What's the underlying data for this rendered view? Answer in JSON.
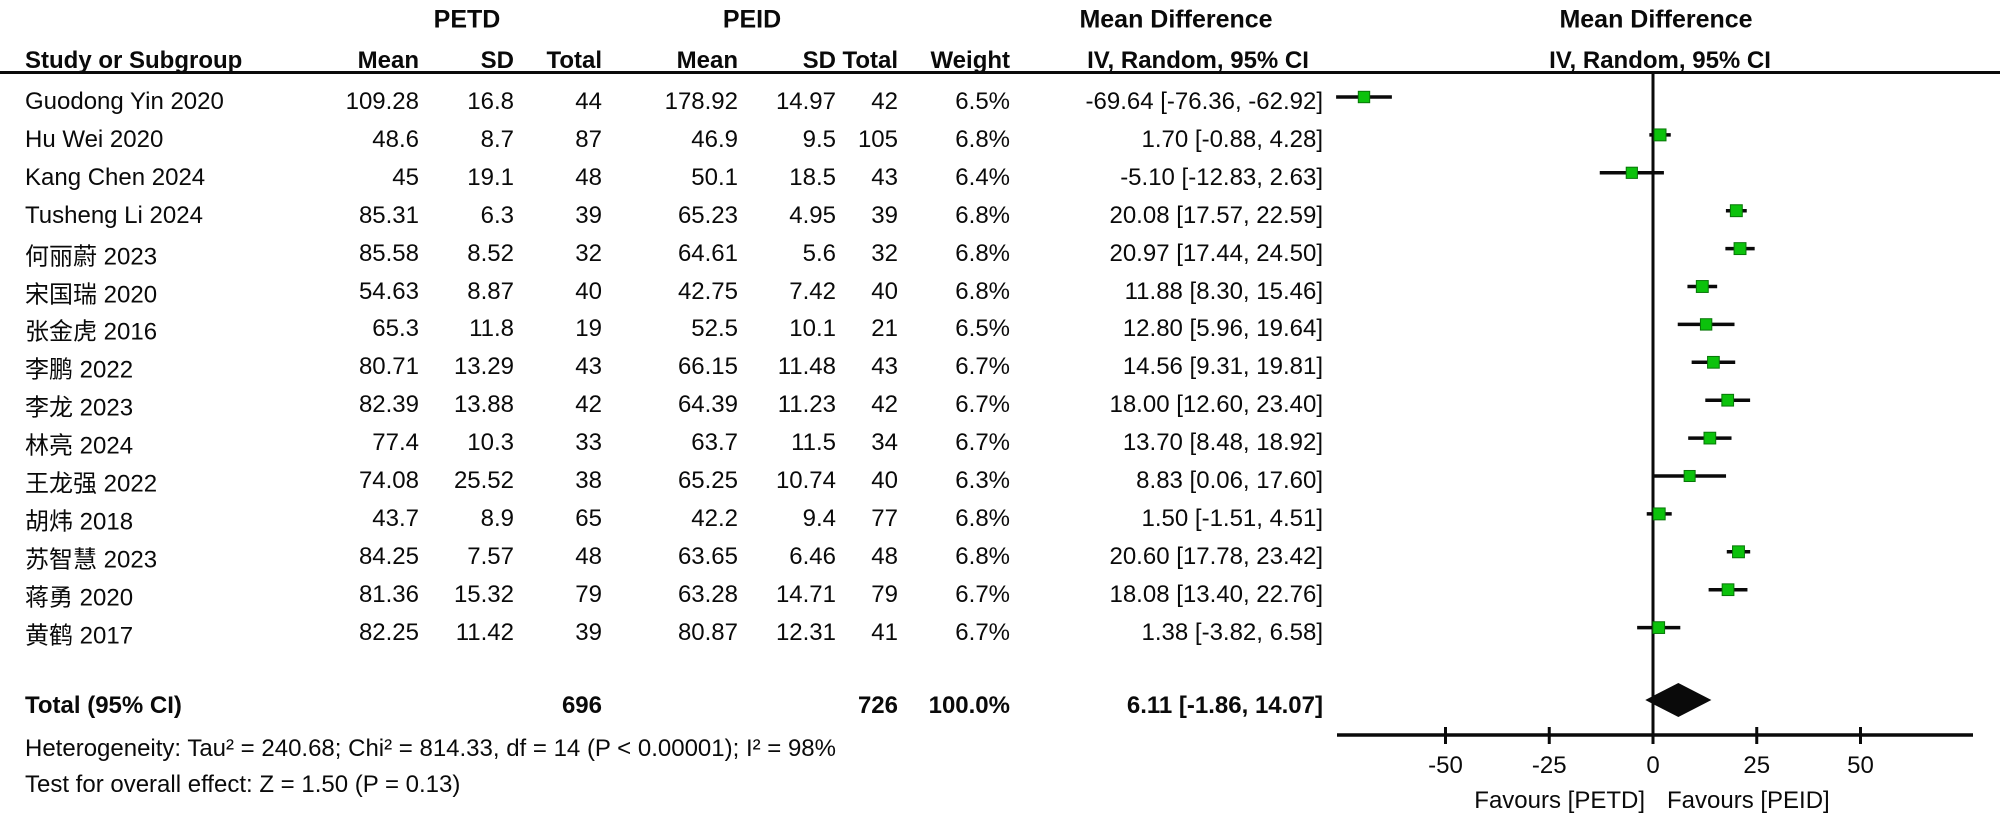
{
  "chart_data": {
    "type": "forest",
    "group1": "PETD",
    "group2": "PEID",
    "effect_label": "Mean Difference",
    "method_label": "IV, Random, 95% CI",
    "columns": [
      "Study or Subgroup",
      "Mean",
      "SD",
      "Total",
      "Mean",
      "SD",
      "Total",
      "Weight",
      "IV, Random, 95% CI"
    ],
    "studies": [
      {
        "name": "Guodong Yin 2020",
        "mean1": "109.28",
        "sd1": "16.8",
        "n1": "44",
        "mean2": "178.92",
        "sd2": "14.97",
        "n2": "42",
        "weight": "6.5%",
        "weight_value": 6.5,
        "md": -69.64,
        "lo": -76.36,
        "hi": -62.92,
        "ci_text": "-69.64 [-76.36, -62.92]"
      },
      {
        "name": "Hu Wei 2020",
        "mean1": "48.6",
        "sd1": "8.7",
        "n1": "87",
        "mean2": "46.9",
        "sd2": "9.5",
        "n2": "105",
        "weight": "6.8%",
        "weight_value": 6.8,
        "md": 1.7,
        "lo": -0.88,
        "hi": 4.28,
        "ci_text": "1.70 [-0.88, 4.28]"
      },
      {
        "name": "Kang Chen 2024",
        "mean1": "45",
        "sd1": "19.1",
        "n1": "48",
        "mean2": "50.1",
        "sd2": "18.5",
        "n2": "43",
        "weight": "6.4%",
        "weight_value": 6.4,
        "md": -5.1,
        "lo": -12.83,
        "hi": 2.63,
        "ci_text": "-5.10 [-12.83, 2.63]"
      },
      {
        "name": "Tusheng Li 2024",
        "mean1": "85.31",
        "sd1": "6.3",
        "n1": "39",
        "mean2": "65.23",
        "sd2": "4.95",
        "n2": "39",
        "weight": "6.8%",
        "weight_value": 6.8,
        "md": 20.08,
        "lo": 17.57,
        "hi": 22.59,
        "ci_text": "20.08 [17.57, 22.59]"
      },
      {
        "name": "何丽蔚 2023",
        "mean1": "85.58",
        "sd1": "8.52",
        "n1": "32",
        "mean2": "64.61",
        "sd2": "5.6",
        "n2": "32",
        "weight": "6.8%",
        "weight_value": 6.8,
        "md": 20.97,
        "lo": 17.44,
        "hi": 24.5,
        "ci_text": "20.97 [17.44, 24.50]"
      },
      {
        "name": "宋国瑞 2020",
        "mean1": "54.63",
        "sd1": "8.87",
        "n1": "40",
        "mean2": "42.75",
        "sd2": "7.42",
        "n2": "40",
        "weight": "6.8%",
        "weight_value": 6.8,
        "md": 11.88,
        "lo": 8.3,
        "hi": 15.46,
        "ci_text": "11.88 [8.30, 15.46]"
      },
      {
        "name": "张金虎 2016",
        "mean1": "65.3",
        "sd1": "11.8",
        "n1": "19",
        "mean2": "52.5",
        "sd2": "10.1",
        "n2": "21",
        "weight": "6.5%",
        "weight_value": 6.5,
        "md": 12.8,
        "lo": 5.96,
        "hi": 19.64,
        "ci_text": "12.80 [5.96, 19.64]"
      },
      {
        "name": "李鹏 2022",
        "mean1": "80.71",
        "sd1": "13.29",
        "n1": "43",
        "mean2": "66.15",
        "sd2": "11.48",
        "n2": "43",
        "weight": "6.7%",
        "weight_value": 6.7,
        "md": 14.56,
        "lo": 9.31,
        "hi": 19.81,
        "ci_text": "14.56 [9.31, 19.81]"
      },
      {
        "name": "李龙 2023",
        "mean1": "82.39",
        "sd1": "13.88",
        "n1": "42",
        "mean2": "64.39",
        "sd2": "11.23",
        "n2": "42",
        "weight": "6.7%",
        "weight_value": 6.7,
        "md": 18.0,
        "lo": 12.6,
        "hi": 23.4,
        "ci_text": "18.00 [12.60, 23.40]"
      },
      {
        "name": "林亮 2024",
        "mean1": "77.4",
        "sd1": "10.3",
        "n1": "33",
        "mean2": "63.7",
        "sd2": "11.5",
        "n2": "34",
        "weight": "6.7%",
        "weight_value": 6.7,
        "md": 13.7,
        "lo": 8.48,
        "hi": 18.92,
        "ci_text": "13.70 [8.48, 18.92]"
      },
      {
        "name": "王龙强 2022",
        "mean1": "74.08",
        "sd1": "25.52",
        "n1": "38",
        "mean2": "65.25",
        "sd2": "10.74",
        "n2": "40",
        "weight": "6.3%",
        "weight_value": 6.3,
        "md": 8.83,
        "lo": 0.06,
        "hi": 17.6,
        "ci_text": "8.83 [0.06, 17.60]"
      },
      {
        "name": "胡炜 2018",
        "mean1": "43.7",
        "sd1": "8.9",
        "n1": "65",
        "mean2": "42.2",
        "sd2": "9.4",
        "n2": "77",
        "weight": "6.8%",
        "weight_value": 6.8,
        "md": 1.5,
        "lo": -1.51,
        "hi": 4.51,
        "ci_text": "1.50 [-1.51, 4.51]"
      },
      {
        "name": "苏智慧 2023",
        "mean1": "84.25",
        "sd1": "7.57",
        "n1": "48",
        "mean2": "63.65",
        "sd2": "6.46",
        "n2": "48",
        "weight": "6.8%",
        "weight_value": 6.8,
        "md": 20.6,
        "lo": 17.78,
        "hi": 23.42,
        "ci_text": "20.60 [17.78, 23.42]"
      },
      {
        "name": "蒋勇 2020",
        "mean1": "81.36",
        "sd1": "15.32",
        "n1": "79",
        "mean2": "63.28",
        "sd2": "14.71",
        "n2": "79",
        "weight": "6.7%",
        "weight_value": 6.7,
        "md": 18.08,
        "lo": 13.4,
        "hi": 22.76,
        "ci_text": "18.08 [13.40, 22.76]"
      },
      {
        "name": "黄鹤 2017",
        "mean1": "82.25",
        "sd1": "11.42",
        "n1": "39",
        "mean2": "80.87",
        "sd2": "12.31",
        "n2": "41",
        "weight": "6.7%",
        "weight_value": 6.7,
        "md": 1.38,
        "lo": -3.82,
        "hi": 6.58,
        "ci_text": "1.38 [-3.82, 6.58]"
      }
    ],
    "total": {
      "label": "Total (95% CI)",
      "n1": "696",
      "n2": "726",
      "weight": "100.0%",
      "md": 6.11,
      "lo": -1.86,
      "hi": 14.07,
      "ci_text": "6.11 [-1.86, 14.07]"
    },
    "heterogeneity": "Heterogeneity: Tau² = 240.68; Chi² = 814.33, df = 14 (P < 0.00001); I² = 98%",
    "overall_effect": "Test for overall effect: Z = 1.50 (P = 0.13)",
    "axis": {
      "ticks": [
        -50,
        -25,
        0,
        25,
        50
      ],
      "tick_labels": [
        "-50",
        "-25",
        "0",
        "25",
        "50"
      ],
      "min": -76.4,
      "max": 77.1
    },
    "favours_left": "Favours [PETD]",
    "favours_right": "Favours [PEID]",
    "colors": {
      "marker": "#0cc20c",
      "marker_border": "#077607",
      "line": "#0a0a0a",
      "diamond": "#0a0a0a"
    }
  }
}
